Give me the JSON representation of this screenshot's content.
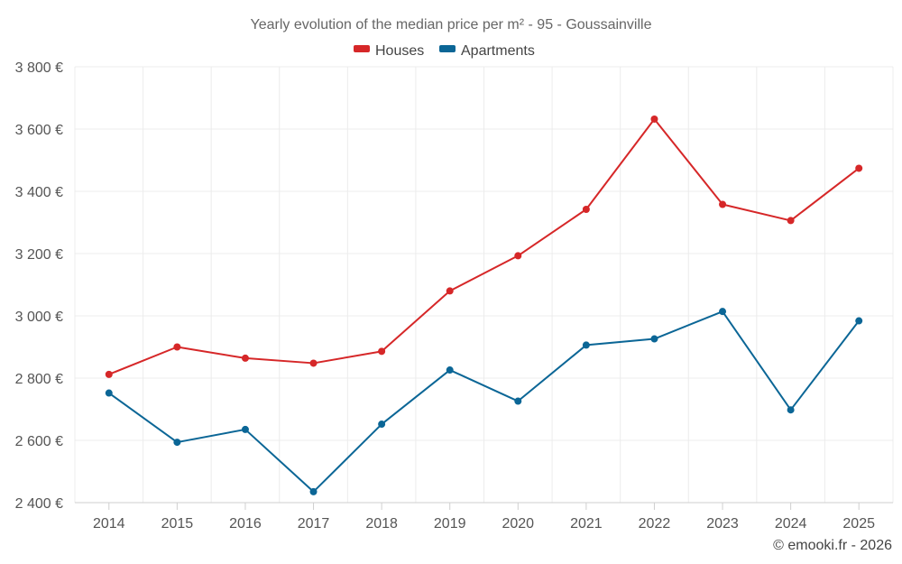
{
  "chart_data": {
    "type": "line",
    "title": "Yearly evolution of the median price per m² - 95 - Goussainville",
    "xlabel": "",
    "ylabel": "",
    "categories": [
      "2014",
      "2015",
      "2016",
      "2017",
      "2018",
      "2019",
      "2020",
      "2021",
      "2022",
      "2023",
      "2024",
      "2025"
    ],
    "ylim": [
      2400,
      3800
    ],
    "yticks": [
      2400,
      2600,
      2800,
      3000,
      3200,
      3400,
      3600,
      3800
    ],
    "ytick_labels": [
      "2 400 €",
      "2 600 €",
      "2 800 €",
      "3 000 €",
      "3 200 €",
      "3 400 €",
      "3 600 €",
      "3 800 €"
    ],
    "grid": true,
    "legend_position": "top-center",
    "series": [
      {
        "name": "Houses",
        "color": "#d62728",
        "values": [
          2812,
          2900,
          2864,
          2848,
          2886,
          3080,
          3193,
          3342,
          3632,
          3358,
          3306,
          3474
        ]
      },
      {
        "name": "Apartments",
        "color": "#0b6696",
        "values": [
          2752,
          2594,
          2635,
          2435,
          2652,
          2826,
          2726,
          2906,
          2926,
          3014,
          2698,
          2984
        ]
      }
    ]
  },
  "credit": "© emooki.fr - 2026"
}
